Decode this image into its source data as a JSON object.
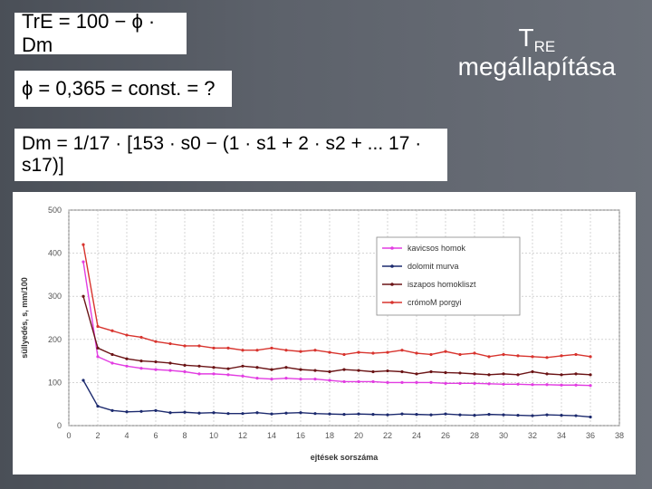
{
  "slide": {
    "title_main": "T",
    "title_sub": "RE",
    "title_line2": "megállapítása"
  },
  "formulas": {
    "f1": "TrE = 100 − ϕ · Dm",
    "f2": "ϕ = 0,365 = const. = ?",
    "f3": "Dm = 1/17 · [153 · s0 − (1 · s1 + 2 · s2 + ... 17 · s17)]"
  },
  "colors": {
    "kavicsos": "#e23de2",
    "dolomit": "#1c2a6e",
    "iszapos": "#6b1416",
    "cromoM": "#d8342e"
  },
  "chart_data": {
    "type": "line",
    "xlabel": "ejtések sorszáma",
    "ylabel": "süllyedés, s, mm/100",
    "xlim": [
      0,
      38
    ],
    "ylim": [
      0,
      500
    ],
    "xticks": [
      0,
      2,
      4,
      6,
      8,
      10,
      12,
      14,
      16,
      18,
      20,
      22,
      24,
      26,
      28,
      30,
      32,
      34,
      36,
      38
    ],
    "yticks": [
      0,
      100,
      200,
      300,
      400,
      500
    ],
    "grid": true,
    "legend_position": "top-right",
    "x": [
      1,
      2,
      3,
      4,
      5,
      6,
      7,
      8,
      9,
      10,
      11,
      12,
      13,
      14,
      15,
      16,
      17,
      18,
      19,
      20,
      21,
      22,
      23,
      24,
      25,
      26,
      27,
      28,
      29,
      30,
      31,
      32,
      33,
      34,
      35,
      36
    ],
    "series": [
      {
        "name": "kavicsos homok",
        "color_key": "kavicsos",
        "values": [
          380,
          160,
          145,
          138,
          133,
          130,
          128,
          125,
          120,
          120,
          118,
          115,
          110,
          108,
          110,
          108,
          108,
          105,
          102,
          102,
          102,
          100,
          100,
          100,
          100,
          98,
          98,
          98,
          97,
          96,
          96,
          95,
          95,
          94,
          94,
          93
        ]
      },
      {
        "name": "dolomit murva",
        "color_key": "dolomit",
        "values": [
          105,
          45,
          35,
          32,
          33,
          35,
          30,
          31,
          29,
          30,
          28,
          28,
          30,
          27,
          29,
          30,
          28,
          27,
          26,
          27,
          26,
          25,
          27,
          26,
          25,
          27,
          25,
          24,
          26,
          25,
          24,
          23,
          25,
          24,
          23,
          20
        ]
      },
      {
        "name": "iszapos homokliszt",
        "color_key": "iszapos",
        "values": [
          300,
          180,
          165,
          155,
          150,
          148,
          145,
          140,
          138,
          135,
          132,
          138,
          135,
          130,
          135,
          130,
          128,
          125,
          130,
          128,
          125,
          127,
          125,
          120,
          125,
          123,
          122,
          120,
          118,
          120,
          118,
          125,
          120,
          118,
          120,
          118
        ]
      },
      {
        "name": "crómoM porgyi",
        "color_key": "cromoM",
        "values": [
          420,
          230,
          220,
          210,
          205,
          195,
          190,
          185,
          185,
          180,
          180,
          175,
          175,
          180,
          175,
          172,
          175,
          170,
          165,
          170,
          168,
          170,
          175,
          168,
          165,
          172,
          165,
          168,
          160,
          165,
          162,
          160,
          158,
          162,
          165,
          160
        ]
      }
    ]
  }
}
